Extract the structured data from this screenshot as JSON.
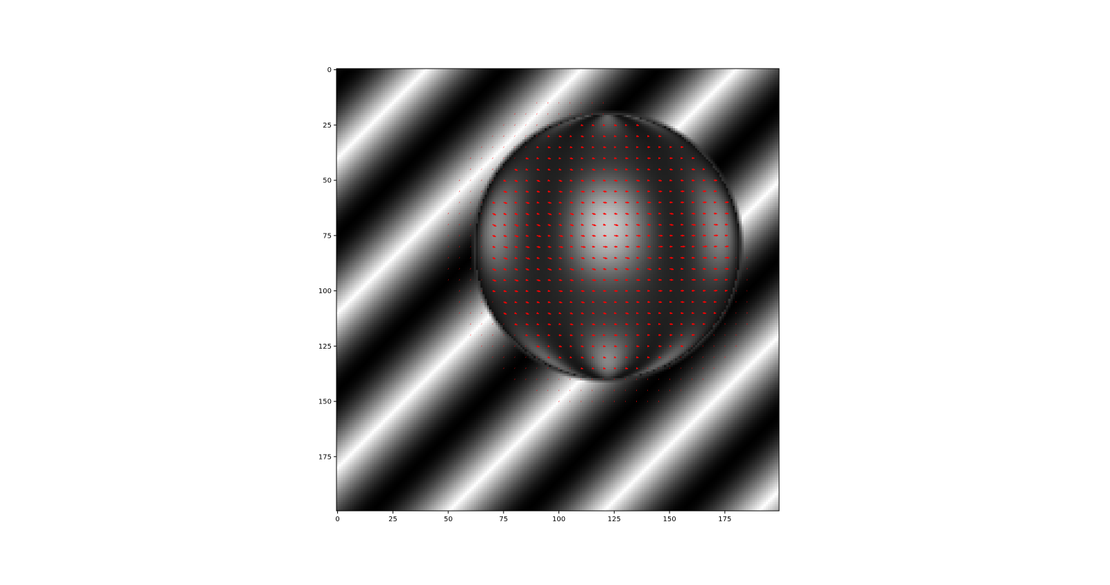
{
  "chart_data": {
    "type": "heatmap",
    "title": "",
    "xlabel": "",
    "ylabel": "",
    "description_kind": "grayscale image with quiver (optical-flow) arrows overlay",
    "xlim": [
      -0.5,
      199.5
    ],
    "ylim": [
      199.5,
      -0.5
    ],
    "y_axis_inverted": true,
    "x_ticks": [
      0,
      25,
      50,
      75,
      100,
      125,
      150,
      175
    ],
    "y_ticks": [
      0,
      25,
      50,
      75,
      100,
      125,
      150,
      175
    ],
    "x_tick_labels": [
      "0",
      "25",
      "50",
      "75",
      "100",
      "125",
      "150",
      "175"
    ],
    "y_tick_labels": [
      "0",
      "25",
      "50",
      "75",
      "100",
      "125",
      "150",
      "175"
    ],
    "grid": false,
    "legend": "none",
    "background_pattern": {
      "kind": "diagonal sinusoidal stripes",
      "colormap": "gray",
      "period_along_diagonal": 70,
      "dark_stripe_through": [
        [
          0,
          5
        ],
        [
          120,
          0
        ]
      ]
    },
    "sphere": {
      "center": [
        122,
        80
      ],
      "radius": 60,
      "pattern": "textured shaded sphere with rotated stripes"
    },
    "quiver": {
      "color": "#ff0000",
      "grid_spacing": 5,
      "x_range": [
        50,
        185
      ],
      "y_range": [
        15,
        150
      ],
      "dominant_direction": "rightward, slight down",
      "max_magnitude_px": 6
    }
  }
}
